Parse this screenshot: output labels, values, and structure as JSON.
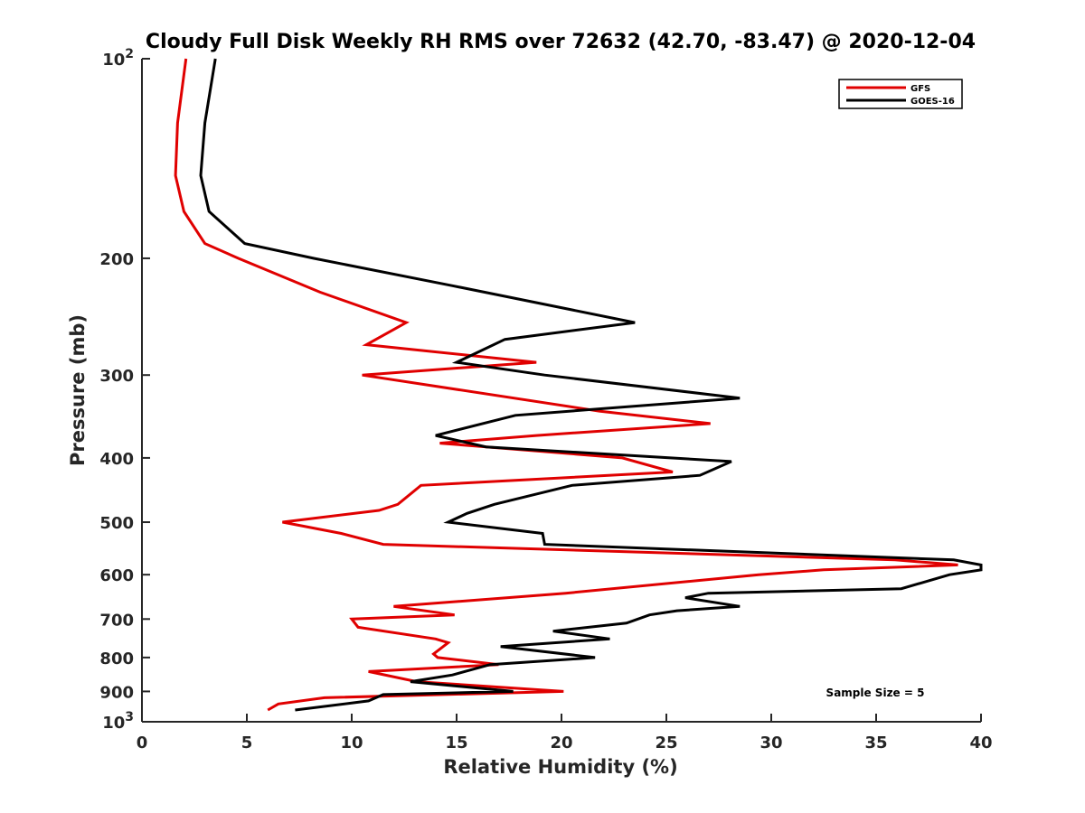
{
  "chart_data": {
    "type": "line",
    "title": "Cloudy Full Disk Weekly RH RMS over 72632 (42.70, -83.47) @ 2020-12-04",
    "xlabel": "Relative Humidity (%)",
    "ylabel": "Pressure (mb)",
    "xlim": [
      0,
      40
    ],
    "ylim": [
      100,
      1000
    ],
    "y_scale": "log",
    "y_reversed": true,
    "x_ticks": [
      0,
      5,
      10,
      15,
      20,
      25,
      30,
      35,
      40
    ],
    "x_tick_labels": [
      "0",
      "5",
      "10",
      "15",
      "20",
      "25",
      "30",
      "35",
      "40"
    ],
    "y_ticks": [
      100,
      200,
      300,
      400,
      500,
      600,
      700,
      800,
      900,
      1000
    ],
    "y_tick_labels": [
      {
        "base": "10",
        "exp": "2"
      },
      {
        "base": "200",
        "exp": ""
      },
      {
        "base": "300",
        "exp": ""
      },
      {
        "base": "400",
        "exp": ""
      },
      {
        "base": "500",
        "exp": ""
      },
      {
        "base": "600",
        "exp": ""
      },
      {
        "base": "700",
        "exp": ""
      },
      {
        "base": "800",
        "exp": ""
      },
      {
        "base": "900",
        "exp": ""
      },
      {
        "base": "10",
        "exp": "3"
      }
    ],
    "grid": false,
    "legend_position": "top-right",
    "annotation": "Sample Size = 5",
    "series": [
      {
        "name": "GFS",
        "color": "#e00000",
        "points": [
          [
            2.1,
            100
          ],
          [
            1.7,
            125
          ],
          [
            1.6,
            150
          ],
          [
            2.0,
            170
          ],
          [
            3.0,
            190
          ],
          [
            4.6,
            200
          ],
          [
            8.5,
            225
          ],
          [
            12.6,
            250
          ],
          [
            10.7,
            270
          ],
          [
            18.8,
            287
          ],
          [
            10.5,
            300
          ],
          [
            21.8,
            340
          ],
          [
            27.1,
            355
          ],
          [
            18.8,
            370
          ],
          [
            14.2,
            380
          ],
          [
            22.9,
            400
          ],
          [
            25.3,
            420
          ],
          [
            13.3,
            440
          ],
          [
            12.2,
            470
          ],
          [
            11.3,
            480
          ],
          [
            6.7,
            500
          ],
          [
            9.5,
            520
          ],
          [
            11.5,
            540
          ],
          [
            35.9,
            570
          ],
          [
            38.9,
            580
          ],
          [
            32.5,
            590
          ],
          [
            29.4,
            600
          ],
          [
            20.2,
            640
          ],
          [
            12.0,
            670
          ],
          [
            14.9,
            690
          ],
          [
            10.0,
            700
          ],
          [
            10.3,
            720
          ],
          [
            14.0,
            750
          ],
          [
            14.6,
            760
          ],
          [
            13.9,
            790
          ],
          [
            14.1,
            800
          ],
          [
            17.0,
            820
          ],
          [
            10.8,
            840
          ],
          [
            13.1,
            870
          ],
          [
            20.1,
            900
          ],
          [
            8.7,
            920
          ],
          [
            6.5,
            940
          ],
          [
            6.0,
            960
          ]
        ]
      },
      {
        "name": "GOES-16",
        "color": "#000000",
        "points": [
          [
            3.5,
            100
          ],
          [
            3.0,
            125
          ],
          [
            2.8,
            150
          ],
          [
            3.2,
            170
          ],
          [
            4.9,
            190
          ],
          [
            8.2,
            200
          ],
          [
            14.8,
            220
          ],
          [
            23.5,
            250
          ],
          [
            17.3,
            265
          ],
          [
            15.0,
            287
          ],
          [
            19.2,
            300
          ],
          [
            28.5,
            325
          ],
          [
            17.8,
            345
          ],
          [
            14.0,
            370
          ],
          [
            16.4,
            385
          ],
          [
            28.1,
            405
          ],
          [
            26.6,
            425
          ],
          [
            20.5,
            440
          ],
          [
            16.8,
            470
          ],
          [
            15.5,
            485
          ],
          [
            14.6,
            500
          ],
          [
            19.1,
            520
          ],
          [
            19.2,
            540
          ],
          [
            38.7,
            570
          ],
          [
            40.0,
            580
          ],
          [
            40.0,
            590
          ],
          [
            38.5,
            600
          ],
          [
            36.2,
            630
          ],
          [
            27.0,
            640
          ],
          [
            25.9,
            650
          ],
          [
            28.5,
            670
          ],
          [
            25.5,
            680
          ],
          [
            24.2,
            690
          ],
          [
            23.1,
            710
          ],
          [
            19.6,
            730
          ],
          [
            22.3,
            750
          ],
          [
            17.1,
            770
          ],
          [
            21.6,
            800
          ],
          [
            16.6,
            820
          ],
          [
            14.8,
            850
          ],
          [
            12.8,
            870
          ],
          [
            17.7,
            900
          ],
          [
            11.5,
            910
          ],
          [
            10.8,
            930
          ],
          [
            7.3,
            960
          ]
        ]
      }
    ]
  }
}
